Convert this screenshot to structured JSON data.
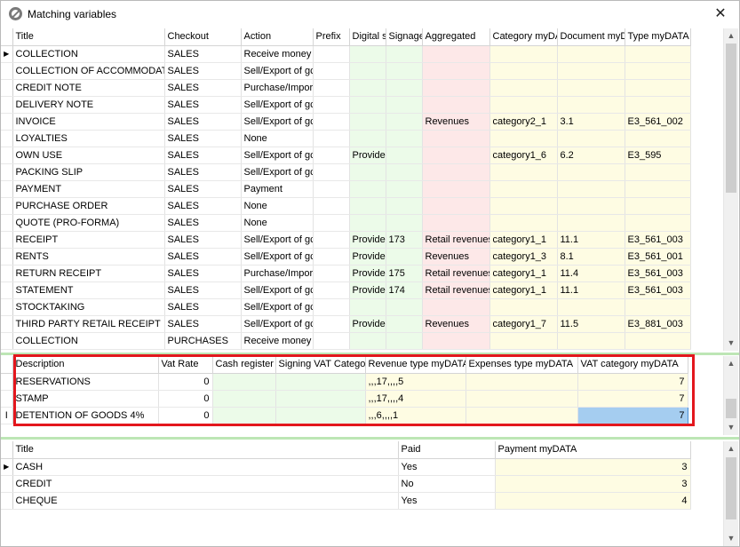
{
  "window": {
    "title": "Matching variables",
    "close_label": "✕"
  },
  "doc_types_grid": {
    "columns": [
      "Title",
      "Checkout",
      "Action",
      "Prefix",
      "Digital s",
      "Signage",
      "Aggregated",
      "Category myDA",
      "Document myD",
      "Type myDATA"
    ],
    "rows": [
      [
        "COLLECTION",
        "SALES",
        "Receive money",
        "",
        "",
        "",
        "",
        "",
        "",
        ""
      ],
      [
        "COLLECTION OF ACCOMMODATIO",
        "SALES",
        "Sell/Export of gc",
        "",
        "",
        "",
        "",
        "",
        "",
        ""
      ],
      [
        "CREDIT NOTE",
        "SALES",
        "Purchase/Import",
        "",
        "",
        "",
        "",
        "",
        "",
        ""
      ],
      [
        "DELIVERY NOTE",
        "SALES",
        "Sell/Export of gc",
        "",
        "",
        "",
        "",
        "",
        "",
        ""
      ],
      [
        "INVOICE",
        "SALES",
        "Sell/Export of gc",
        "",
        "",
        "",
        "Revenues",
        "category2_1",
        "3.1",
        "E3_561_002"
      ],
      [
        "LOYALTIES",
        "SALES",
        "None",
        "",
        "",
        "",
        "",
        "",
        "",
        ""
      ],
      [
        "OWN USE",
        "SALES",
        "Sell/Export of gc",
        "",
        "Provide",
        "",
        "",
        "category1_6",
        "6.2",
        "E3_595"
      ],
      [
        "PACKING SLIP",
        "SALES",
        "Sell/Export of gc",
        "",
        "",
        "",
        "",
        "",
        "",
        ""
      ],
      [
        "PAYMENT",
        "SALES",
        "Payment",
        "",
        "",
        "",
        "",
        "",
        "",
        ""
      ],
      [
        "PURCHASE ORDER",
        "SALES",
        "None",
        "",
        "",
        "",
        "",
        "",
        "",
        ""
      ],
      [
        "QUOTE (PRO-FORMA)",
        "SALES",
        "None",
        "",
        "",
        "",
        "",
        "",
        "",
        ""
      ],
      [
        "RECEIPT",
        "SALES",
        "Sell/Export of gc",
        "",
        "Provide",
        "173",
        "Retail revenues",
        "category1_1",
        "11.1",
        "E3_561_003"
      ],
      [
        "RENTS",
        "SALES",
        "Sell/Export of gc",
        "",
        "Provide",
        "",
        "Revenues",
        "category1_3",
        "8.1",
        "E3_561_001"
      ],
      [
        "RETURN RECEIPT",
        "SALES",
        "Purchase/Import",
        "",
        "Provide",
        "175",
        "Retail revenues",
        "category1_1",
        "11.4",
        "E3_561_003"
      ],
      [
        "STATEMENT",
        "SALES",
        "Sell/Export of gc",
        "",
        "Provide",
        "174",
        "Retail revenues",
        "category1_1",
        "11.1",
        "E3_561_003"
      ],
      [
        "STOCKTAKING",
        "SALES",
        "Sell/Export of gc",
        "",
        "",
        "",
        "",
        "",
        "",
        ""
      ],
      [
        "THIRD PARTY RETAIL RECEIPT",
        "SALES",
        "Sell/Export of gc",
        "",
        "Provide",
        "",
        "Revenues",
        "category1_7",
        "11.5",
        "E3_881_003"
      ],
      [
        "COLLECTION",
        "PURCHASES",
        "Receive money",
        "",
        "",
        "",
        "",
        "",
        "",
        ""
      ]
    ]
  },
  "vat_grid": {
    "columns": [
      "Description",
      "Vat Rate",
      "Cash register",
      "Signing VAT Catego",
      "Revenue type myDATA",
      "Expenses type myDATA",
      "VAT category myDATA"
    ],
    "rows": [
      [
        "RESERVATIONS",
        "0",
        "",
        "",
        ",,,17,,,,5",
        "",
        "7"
      ],
      [
        "STAMP",
        "0",
        "",
        "",
        ",,,17,,,,4",
        "",
        "7"
      ],
      [
        "DETENTION OF GOODS 4%",
        "0",
        "",
        "",
        ",,,6,,,,1",
        "",
        "7"
      ]
    ],
    "edit_row_marker": "I"
  },
  "payment_grid": {
    "columns": [
      "Title",
      "Paid",
      "Payment myDATA"
    ],
    "rows": [
      [
        "CASH",
        "Yes",
        "3"
      ],
      [
        "CREDIT",
        "No",
        "3"
      ],
      [
        "CHEQUE",
        "Yes",
        "4"
      ]
    ]
  },
  "icons": {
    "window_icon": "no-entry-icon",
    "current_row": "triangle-right-icon",
    "scroll_up": "chevron-up-icon",
    "scroll_down": "chevron-down-icon"
  },
  "colors": {
    "highlight_frame": "#e3171d",
    "splitter": "#bde6b5",
    "green_cell": "#ecfbe9",
    "pink_cell": "#fde8e8",
    "yellow_cell": "#fefce3",
    "selected_cell": "#a5cdf0"
  }
}
